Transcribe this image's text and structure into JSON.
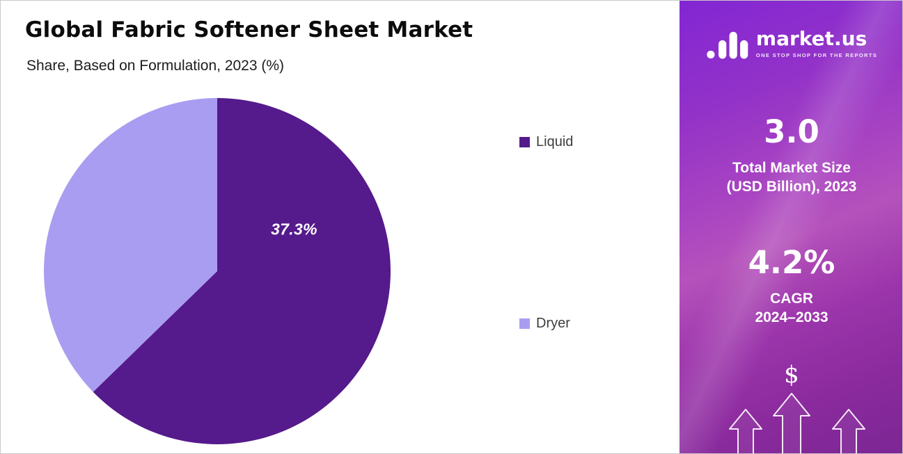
{
  "header": {
    "title": "Global Fabric Softener Sheet Market",
    "subtitle": "Share, Based on Formulation, 2023 (%)"
  },
  "chart_data": {
    "type": "pie",
    "title": "Global Fabric Softener Sheet Market",
    "subtitle": "Share, Based on Formulation, 2023 (%)",
    "slices": [
      {
        "label": "Liquid",
        "value": 62.7,
        "color": "#551a8b"
      },
      {
        "label": "Dryer",
        "value": 37.3,
        "color": "#a99df1"
      }
    ],
    "displayed_label": "37.3%",
    "start_angle_deg": 0,
    "direction": "clockwise",
    "legend_position": "right"
  },
  "legend": {
    "items": [
      {
        "label": "Liquid",
        "color": "#551a8b"
      },
      {
        "label": "Dryer",
        "color": "#a99df1"
      }
    ]
  },
  "sidebar": {
    "logo": {
      "brand": "market.us",
      "tagline": "ONE STOP SHOP FOR THE REPORTS"
    },
    "stats": [
      {
        "value": "3.0",
        "label_line1": "Total Market Size",
        "label_line2": "(USD Billion), 2023"
      },
      {
        "value": "4.2%",
        "label_line1": "CAGR",
        "label_line2": "2024–2033"
      }
    ],
    "dollar_symbol": "$",
    "colors": {
      "gradient_top": "#8226d4",
      "gradient_middle": "#b552bb",
      "gradient_bottom": "#7c2694"
    }
  }
}
